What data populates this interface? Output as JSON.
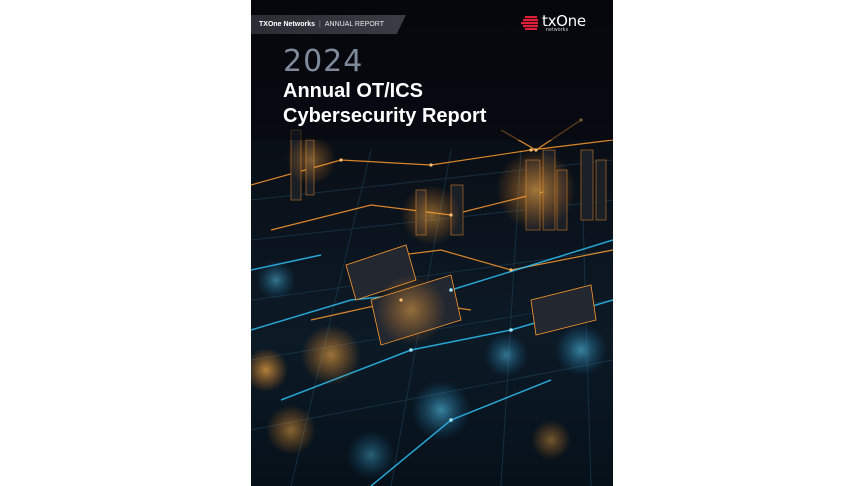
{
  "cover": {
    "brand": "TXOne Networks",
    "category": "ANNUAL REPORT",
    "logo_word": "txOne",
    "logo_sub": "networks",
    "year": "2024",
    "title_line1": "Annual OT/ICS",
    "title_line2": "Cybersecurity Report"
  },
  "colors": {
    "accent": "#e0203a",
    "glow_orange": "#ff9a2e",
    "glow_cyan": "#2ec9ff",
    "background": "#05070c"
  }
}
